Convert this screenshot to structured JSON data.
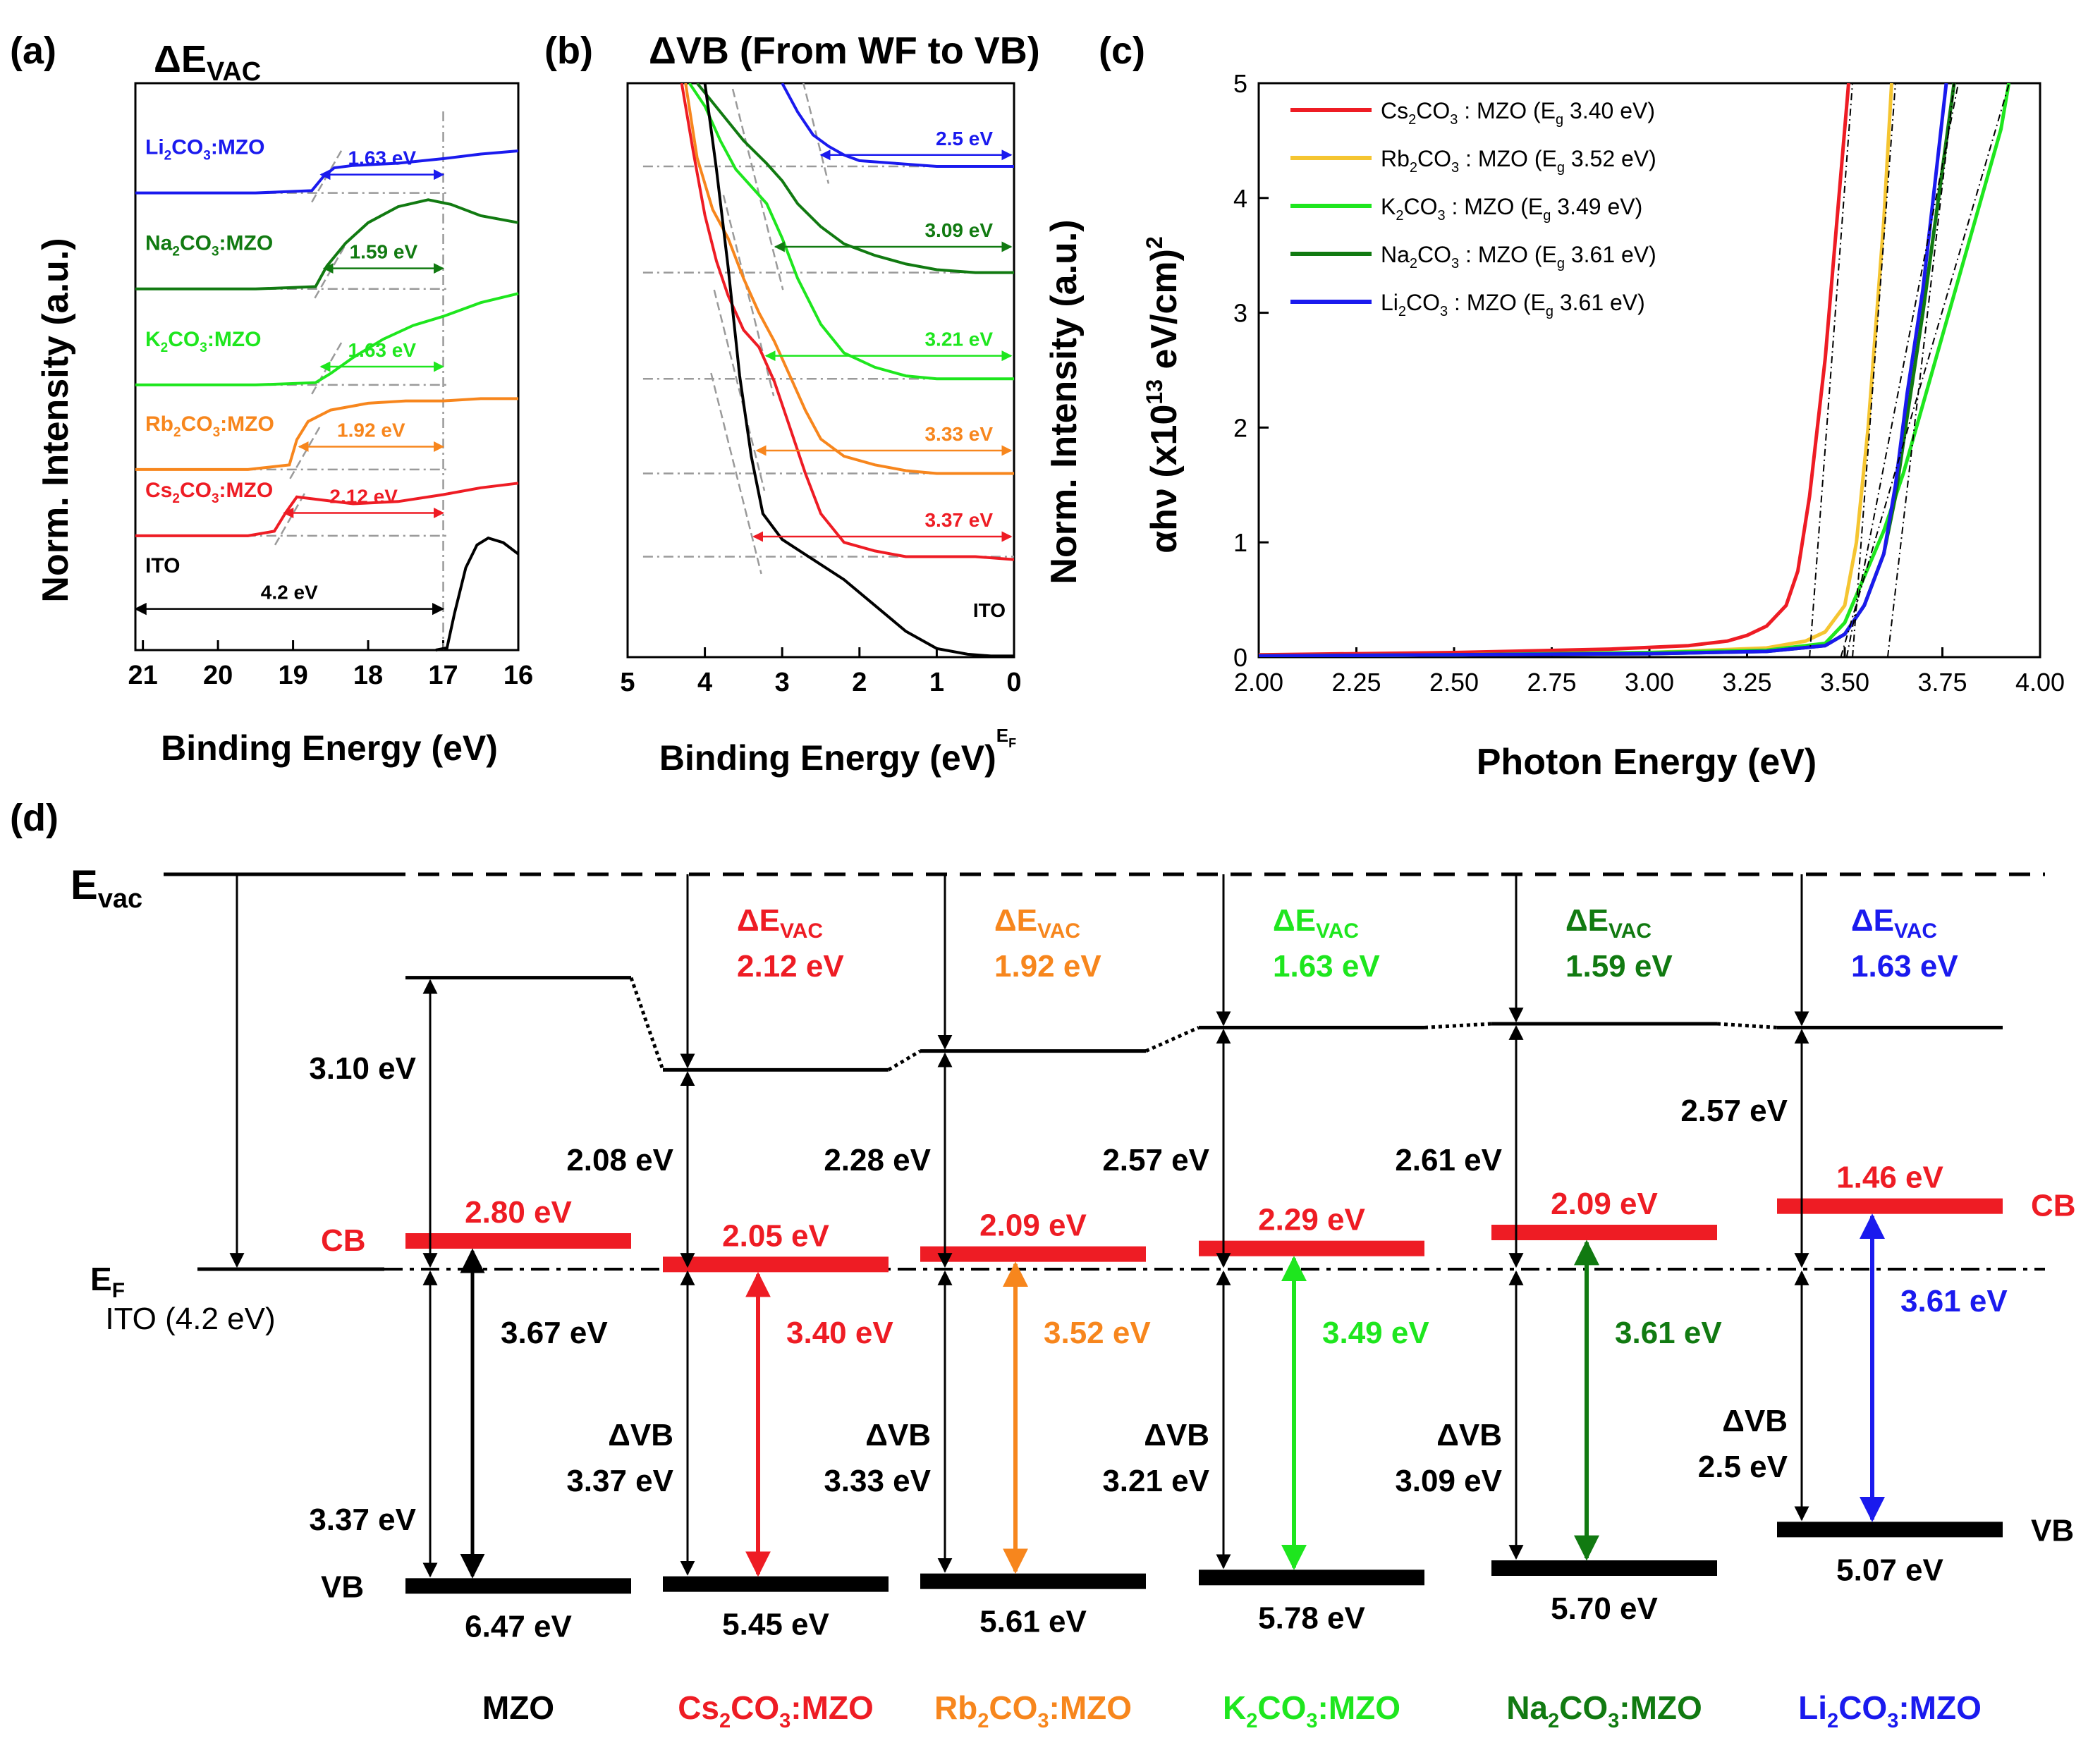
{
  "colors": {
    "red": "#ee1c24",
    "orange": "#f7861d",
    "green": "#1ee61e",
    "darkgreen": "#117a11",
    "blue": "#1a1aee",
    "yellow": "#f5c531",
    "black": "#000000",
    "gray": "#9a9a9a"
  },
  "chart_data": [
    {
      "id": "a",
      "type": "line",
      "panel_label": "(a)",
      "title": "ΔE",
      "title_sub": "VAC",
      "xlabel": "Binding Energy (eV)",
      "ylabel": "Norm. Intensity (a.u.)",
      "xlim": [
        21.1,
        16.0
      ],
      "x_ticks": [
        21,
        20,
        19,
        18,
        17,
        16
      ],
      "ylim": [
        0,
        12.4
      ],
      "reference_x": 17.0,
      "series": [
        {
          "name": "Li2CO3:MZO",
          "label_parts": [
            "Li",
            "2",
            "CO",
            "3",
            ":MZO"
          ],
          "color": "blue",
          "baseline": 10.0,
          "rise_start": 18.7,
          "rise_end": 18.45,
          "top": 10.6,
          "x": [
            21.1,
            19.5,
            18.75,
            18.6,
            18.45,
            18.2,
            17.6,
            17.0,
            16.5,
            16.0
          ],
          "y": [
            10.0,
            10.0,
            10.05,
            10.35,
            10.55,
            10.6,
            10.65,
            10.75,
            10.85,
            10.92
          ],
          "annotation": "1.63 eV",
          "anno_x1": 18.63,
          "anno_x2": 17.0,
          "anno_y": 10.4
        },
        {
          "name": "Na2CO3:MZO",
          "label_parts": [
            "Na",
            "2",
            "CO",
            "3",
            ":MZO"
          ],
          "color": "darkgreen",
          "baseline": 7.9,
          "top": 9.9,
          "x": [
            21.1,
            19.5,
            18.7,
            18.55,
            18.3,
            18.0,
            17.6,
            17.2,
            16.9,
            16.5,
            16.0
          ],
          "y": [
            7.9,
            7.9,
            7.95,
            8.4,
            8.9,
            9.35,
            9.7,
            9.85,
            9.75,
            9.5,
            9.35
          ],
          "annotation": "1.59 eV",
          "anno_x1": 18.59,
          "anno_x2": 17.0,
          "anno_y": 8.35
        },
        {
          "name": "K2CO3:MZO",
          "label_parts": [
            "K",
            "2",
            "CO",
            "3",
            ":MZO"
          ],
          "color": "green",
          "baseline": 5.8,
          "top": 7.6,
          "x": [
            21.1,
            19.5,
            18.7,
            18.5,
            18.2,
            17.8,
            17.4,
            17.0,
            16.5,
            16.0
          ],
          "y": [
            5.8,
            5.8,
            5.85,
            6.05,
            6.4,
            6.8,
            7.1,
            7.3,
            7.6,
            7.8
          ],
          "annotation": "1.63 eV",
          "anno_x1": 18.63,
          "anno_x2": 17.0,
          "anno_y": 6.2
        },
        {
          "name": "Rb2CO3:MZO",
          "label_parts": [
            "Rb",
            "2",
            "CO",
            "3",
            ":MZO"
          ],
          "color": "orange",
          "baseline": 3.95,
          "top": 5.6,
          "x": [
            21.1,
            19.6,
            19.05,
            18.95,
            18.8,
            18.5,
            18.0,
            17.5,
            17.0,
            16.5,
            16.0
          ],
          "y": [
            3.95,
            3.95,
            4.05,
            4.6,
            5.0,
            5.25,
            5.4,
            5.45,
            5.45,
            5.5,
            5.5
          ],
          "annotation": "1.92 eV",
          "anno_x1": 18.92,
          "anno_x2": 17.0,
          "anno_y": 4.45
        },
        {
          "name": "Cs2CO3:MZO",
          "label_parts": [
            "Cs",
            "2",
            "CO",
            "3",
            ":MZO"
          ],
          "color": "red",
          "baseline": 2.5,
          "top": 3.4,
          "x": [
            21.1,
            19.6,
            19.25,
            19.1,
            18.95,
            18.7,
            18.2,
            17.6,
            17.0,
            16.5,
            16.0
          ],
          "y": [
            2.5,
            2.5,
            2.6,
            3.0,
            3.35,
            3.3,
            3.2,
            3.25,
            3.4,
            3.55,
            3.65
          ],
          "annotation": "2.12 eV",
          "anno_x1": 19.12,
          "anno_x2": 17.0,
          "anno_y": 3.0
        },
        {
          "name": "ITO",
          "label_parts": [
            "ITO"
          ],
          "color": "black",
          "baseline": 0.0,
          "top": 2.4,
          "x": [
            17.1,
            16.95,
            16.85,
            16.7,
            16.55,
            16.4,
            16.2,
            16.0
          ],
          "y": [
            0.0,
            0.05,
            0.8,
            1.8,
            2.3,
            2.45,
            2.35,
            2.1
          ],
          "annotation": "4.2 eV",
          "anno_x1": 21.1,
          "anno_x2": 17.0,
          "anno_y": 0.9
        }
      ]
    },
    {
      "id": "b",
      "type": "line",
      "panel_label": "(b)",
      "title": "ΔVB (From WF to VB)",
      "xlabel": "Binding Energy (eV)",
      "xlabel_sup": "E",
      "xlabel_sup_sub": "F",
      "ylabel": "Norm. Intensity (a.u.)",
      "xlim": [
        5.0,
        0.0
      ],
      "x_ticks": [
        5,
        4,
        3,
        2,
        1,
        0
      ],
      "ylim": [
        0,
        10
      ],
      "series": [
        {
          "name": "Li2CO3:MZO",
          "color": "blue",
          "x": [
            3.0,
            2.8,
            2.6,
            2.4,
            2.2,
            2.0,
            1.5,
            1.0,
            0.5,
            0.0
          ],
          "y": [
            10.0,
            9.5,
            9.1,
            8.9,
            8.75,
            8.65,
            8.6,
            8.55,
            8.55,
            8.55
          ],
          "annotation": "2.5 eV",
          "anno_x1": 2.5,
          "anno_y": 8.75,
          "base": 8.55
        },
        {
          "name": "Na2CO3:MZO",
          "color": "darkgreen",
          "x": [
            4.1,
            3.8,
            3.5,
            3.2,
            3.0,
            2.8,
            2.5,
            2.2,
            1.8,
            1.4,
            1.0,
            0.5,
            0.0
          ],
          "y": [
            10.0,
            9.5,
            9.0,
            8.6,
            8.3,
            7.9,
            7.5,
            7.2,
            7.0,
            6.85,
            6.75,
            6.7,
            6.7
          ],
          "annotation": "3.09 eV",
          "anno_x1": 3.09,
          "anno_y": 7.15,
          "base": 6.7
        },
        {
          "name": "K2CO3:MZO",
          "color": "green",
          "x": [
            4.2,
            4.0,
            3.8,
            3.6,
            3.4,
            3.2,
            3.0,
            2.8,
            2.5,
            2.2,
            1.8,
            1.4,
            1.0,
            0.5,
            0.0
          ],
          "y": [
            10.0,
            9.6,
            9.0,
            8.5,
            8.2,
            7.9,
            7.3,
            6.6,
            5.8,
            5.3,
            5.05,
            4.9,
            4.85,
            4.85,
            4.85
          ],
          "annotation": "3.21 eV",
          "anno_x1": 3.21,
          "anno_y": 5.25,
          "base": 4.85
        },
        {
          "name": "Rb2CO3:MZO",
          "color": "orange",
          "x": [
            4.25,
            4.1,
            3.9,
            3.7,
            3.5,
            3.3,
            3.1,
            2.9,
            2.7,
            2.5,
            2.2,
            1.8,
            1.4,
            1.0,
            0.5,
            0.0
          ],
          "y": [
            10.0,
            8.7,
            7.8,
            7.3,
            6.6,
            6.0,
            5.5,
            4.9,
            4.3,
            3.8,
            3.5,
            3.35,
            3.25,
            3.2,
            3.2,
            3.2
          ],
          "annotation": "3.33 eV",
          "anno_x1": 3.33,
          "anno_y": 3.6,
          "base": 3.2
        },
        {
          "name": "Cs2CO3:MZO",
          "color": "red",
          "x": [
            4.3,
            4.15,
            4.0,
            3.85,
            3.7,
            3.5,
            3.3,
            3.1,
            2.9,
            2.7,
            2.5,
            2.2,
            1.8,
            1.4,
            1.0,
            0.5,
            0.0
          ],
          "y": [
            10.0,
            8.8,
            7.7,
            6.9,
            6.3,
            5.7,
            5.4,
            4.8,
            4.0,
            3.2,
            2.5,
            2.0,
            1.85,
            1.75,
            1.75,
            1.75,
            1.7
          ],
          "annotation": "3.37 eV",
          "anno_x1": 3.37,
          "anno_y": 2.1,
          "base": 1.75
        },
        {
          "name": "ITO",
          "label": "ITO",
          "color": "black",
          "x": [
            4.0,
            3.85,
            3.7,
            3.55,
            3.4,
            3.25,
            3.0,
            2.6,
            2.2,
            1.8,
            1.4,
            1.0,
            0.6,
            0.3,
            0.0
          ],
          "y": [
            10.0,
            8.5,
            6.8,
            4.9,
            3.5,
            2.5,
            2.05,
            1.7,
            1.35,
            0.9,
            0.45,
            0.15,
            0.05,
            0.02,
            0.02
          ]
        }
      ]
    },
    {
      "id": "c",
      "type": "line",
      "panel_label": "(c)",
      "xlabel": "Photon Energy (eV)",
      "ylabel_parts": [
        "αhν (x10",
        "13",
        " eV/cm)",
        "2"
      ],
      "xlim": [
        2.0,
        4.0
      ],
      "ylim": [
        0,
        5
      ],
      "x_ticks": [
        "2.00",
        "2.25",
        "2.50",
        "2.75",
        "3.00",
        "3.25",
        "3.50",
        "3.75",
        "4.00"
      ],
      "y_ticks": [
        "0",
        "1",
        "2",
        "3",
        "4",
        "5"
      ],
      "legend_position": "top-left",
      "series": [
        {
          "name": "Cs2CO3 : MZO (Eg 3.40 eV)",
          "legend_parts": [
            "Cs",
            "2",
            "CO",
            "3",
            " : MZO (E",
            "g",
            " 3.40 eV)"
          ],
          "color": "red",
          "Eg": 3.4,
          "x": [
            2.0,
            2.5,
            2.9,
            3.1,
            3.2,
            3.25,
            3.3,
            3.35,
            3.38,
            3.41,
            3.45,
            3.48,
            3.51
          ],
          "y": [
            0.02,
            0.04,
            0.07,
            0.1,
            0.14,
            0.19,
            0.27,
            0.45,
            0.75,
            1.4,
            2.6,
            3.8,
            5.0
          ]
        },
        {
          "name": "Rb2CO3 : MZO (Eg 3.52 eV)",
          "legend_parts": [
            "Rb",
            "2",
            "CO",
            "3",
            " : MZO (E",
            "g",
            " 3.52 eV)"
          ],
          "color": "yellow",
          "Eg": 3.52,
          "x": [
            2.0,
            2.5,
            3.0,
            3.3,
            3.4,
            3.45,
            3.5,
            3.53,
            3.56,
            3.6,
            3.62
          ],
          "y": [
            0.01,
            0.02,
            0.04,
            0.08,
            0.14,
            0.22,
            0.45,
            1.0,
            2.0,
            3.8,
            5.0
          ]
        },
        {
          "name": "K2CO3 : MZO (Eg 3.49 eV)",
          "legend_parts": [
            "K",
            "2",
            "CO",
            "3",
            " : MZO (E",
            "g",
            " 3.49 eV)"
          ],
          "color": "green",
          "Eg": 3.49,
          "x": [
            2.0,
            2.5,
            3.0,
            3.3,
            3.45,
            3.5,
            3.55,
            3.6,
            3.65,
            3.7,
            3.8,
            3.9,
            3.92
          ],
          "y": [
            0.01,
            0.02,
            0.04,
            0.06,
            0.12,
            0.3,
            0.7,
            1.1,
            1.6,
            2.2,
            3.4,
            4.6,
            5.0
          ]
        },
        {
          "name": "Na2CO3 : MZO (Eg 3.61 eV)",
          "legend_parts": [
            "Na",
            "2",
            "CO",
            "3",
            " : MZO (E",
            "g",
            " 3.61 eV)"
          ],
          "color": "darkgreen",
          "Eg": 3.61,
          "x": [
            2.0,
            2.5,
            3.0,
            3.3,
            3.45,
            3.5,
            3.55,
            3.6,
            3.63,
            3.66,
            3.7,
            3.74,
            3.78
          ],
          "y": [
            0.01,
            0.02,
            0.03,
            0.05,
            0.1,
            0.2,
            0.45,
            0.9,
            1.4,
            2.1,
            3.0,
            4.0,
            5.0
          ]
        },
        {
          "name": "Li2CO3 : MZO (Eg 3.61 eV)",
          "legend_parts": [
            "Li",
            "2",
            "CO",
            "3",
            " : MZO (E",
            "g",
            " 3.61 eV)"
          ],
          "color": "blue",
          "Eg": 3.61,
          "x": [
            2.0,
            2.5,
            3.0,
            3.3,
            3.45,
            3.5,
            3.55,
            3.6,
            3.63,
            3.66,
            3.7,
            3.73,
            3.76
          ],
          "y": [
            0.01,
            0.02,
            0.03,
            0.05,
            0.1,
            0.2,
            0.45,
            0.9,
            1.5,
            2.3,
            3.2,
            4.1,
            5.0
          ]
        }
      ],
      "fit_lines": [
        {
          "x0": 3.41,
          "x1": 3.52,
          "slope": 45.5
        },
        {
          "x0": 3.52,
          "x1": 3.63,
          "slope": 45.5
        },
        {
          "x0": 3.49,
          "x1": 3.92,
          "slope": 11.6
        },
        {
          "x0": 3.61,
          "x1": 3.78,
          "slope": 29.4
        },
        {
          "x0": 3.505,
          "x1": 3.79,
          "slope": 17.5
        }
      ]
    },
    {
      "id": "d",
      "type": "energy-level-diagram",
      "panel_label": "(d)",
      "units": "eV below vacuum level",
      "evac_label": "E",
      "evac_sub": "vac",
      "ef_label": "E",
      "ef_sub": "F",
      "ef_level": 4.2,
      "ito": {
        "label": "ITO (4.2 eV)",
        "wf": 4.2,
        "color": "black"
      },
      "columns": [
        {
          "name": "MZO",
          "label_parts": [
            "MZO"
          ],
          "color": "black",
          "wf": 1.1,
          "cb": 3.9,
          "vb": 7.57,
          "cb_label": "2.80 eV",
          "vb_label": "6.47 eV",
          "wf_label": "3.10 eV",
          "cb_vb_label": "3.67 eV",
          "vb_ef_label": "3.37 eV",
          "show_cb_text": "CB",
          "show_vb_text": "VB"
        },
        {
          "name": "Cs2CO3:MZO",
          "label_parts": [
            "Cs",
            "2",
            "CO",
            "3",
            ":MZO"
          ],
          "color": "red",
          "devac": "2.12 eV",
          "wf": 2.08,
          "cb": 4.15,
          "vb": 7.55,
          "cb_label": "2.05 eV",
          "vb_label": "5.45 eV",
          "wf_label": "2.08 eV",
          "eg_label": "3.40 eV",
          "dvb_title": "ΔVB",
          "dvb_label": "3.37 eV"
        },
        {
          "name": "Rb2CO3:MZO",
          "label_parts": [
            "Rb",
            "2",
            "CO",
            "3",
            ":MZO"
          ],
          "color": "orange",
          "devac": "1.92 eV",
          "wf": 1.88,
          "cb": 4.04,
          "vb": 7.52,
          "cb_label": "2.09 eV",
          "vb_label": "5.61 eV",
          "wf_label": "2.28 eV",
          "eg_label": "3.52 eV",
          "dvb_title": "ΔVB",
          "dvb_label": "3.33 eV"
        },
        {
          "name": "K2CO3:MZO",
          "label_parts": [
            "K",
            "2",
            "CO",
            "3",
            ":MZO"
          ],
          "color": "green",
          "devac": "1.63 eV",
          "wf": 1.63,
          "cb": 3.98,
          "vb": 7.48,
          "cb_label": "2.29 eV",
          "vb_label": "5.78 eV",
          "wf_label": "2.57 eV",
          "eg_label": "3.49 eV",
          "dvb_title": "ΔVB",
          "dvb_label": "3.21 eV"
        },
        {
          "name": "Na2CO3:MZO",
          "label_parts": [
            "Na",
            "2",
            "CO",
            "3",
            ":MZO"
          ],
          "color": "darkgreen",
          "devac": "1.59 eV",
          "wf": 1.59,
          "cb": 3.81,
          "vb": 7.38,
          "cb_label": "2.09 eV",
          "vb_label": "5.70 eV",
          "wf_label": "2.61 eV",
          "eg_label": "3.61 eV",
          "dvb_title": "ΔVB",
          "dvb_label": "3.09 eV"
        },
        {
          "name": "Li2CO3:MZO",
          "label_parts": [
            "Li",
            "2",
            "CO",
            "3",
            ":MZO"
          ],
          "color": "blue",
          "devac": "1.63 eV",
          "wf": 1.63,
          "cb": 3.53,
          "vb": 6.97,
          "cb_label": "1.46 eV",
          "vb_label": "5.07 eV",
          "wf_label": "2.57 eV",
          "eg_label": "3.61 eV",
          "dvb_title": "ΔVB",
          "dvb_label": "2.5 eV",
          "show_cb_text": "CB",
          "show_vb_text": "VB"
        }
      ],
      "devac_title": "ΔE",
      "devac_sub": "VAC"
    }
  ]
}
